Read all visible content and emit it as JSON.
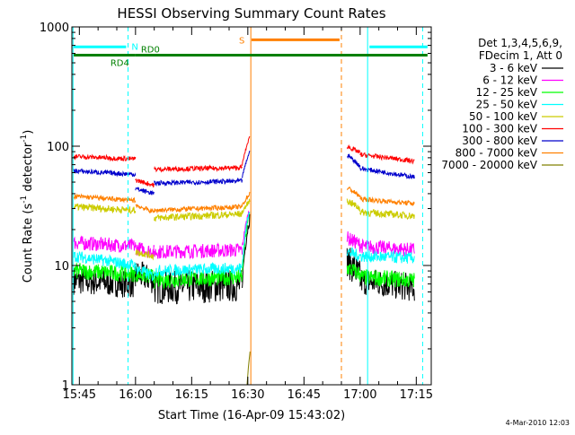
{
  "chart_data": {
    "type": "line",
    "title": "HESSI Observing Summary Count Rates",
    "xlabel": "Start Time (16-Apr-09 15:43:02)",
    "ylabel_main": "Count Rate (s",
    "ylabel_sup1": "-1",
    "ylabel_mid": " detector",
    "ylabel_sup2": "-1",
    "ylabel_end": ")",
    "yscale": "log",
    "ylim": [
      1,
      1000
    ],
    "xlim_minutes_after_1543": [
      0,
      96
    ],
    "x_ticks": [
      {
        "label": "15:45",
        "minute": 2
      },
      {
        "label": "16:00",
        "minute": 17
      },
      {
        "label": "16:15",
        "minute": 32
      },
      {
        "label": "16:30",
        "minute": 47
      },
      {
        "label": "16:45",
        "minute": 62
      },
      {
        "label": "17:00",
        "minute": 77
      },
      {
        "label": "17:15",
        "minute": 92
      }
    ],
    "y_ticks": [
      {
        "label": "1",
        "value": 1
      },
      {
        "label": "10",
        "value": 10
      },
      {
        "label": "100",
        "value": 100
      },
      {
        "label": "1000",
        "value": 1000
      }
    ],
    "legend": {
      "position": "right",
      "header": [
        "Det 1,3,4,5,6,9,",
        "FDecim 1, Att 0"
      ]
    },
    "series": [
      {
        "name": "3 - 6 keV",
        "color": "#000000",
        "segments": [
          {
            "t0": 0.5,
            "t1": 17,
            "v0": 7.5,
            "v1": 7.0,
            "noise": 0.12
          },
          {
            "t0": 17,
            "t1": 22,
            "v0": 8.5,
            "v1": 7.5,
            "noise": 0.12
          },
          {
            "t0": 22,
            "t1": 45.5,
            "v0": 6.5,
            "v1": 6.8,
            "noise": 0.14
          },
          {
            "t0": 45.5,
            "t1": 47.5,
            "v0": 7,
            "v1": 25,
            "noise": 0.05
          },
          {
            "t0": 73.5,
            "t1": 77,
            "v0": 11,
            "v1": 8,
            "noise": 0.14
          },
          {
            "t0": 77,
            "t1": 91.5,
            "v0": 7.5,
            "v1": 6.5,
            "noise": 0.12
          }
        ]
      },
      {
        "name": "6 - 12 keV",
        "color": "#ff00ff",
        "segments": [
          {
            "t0": 0.5,
            "t1": 17,
            "v0": 15.5,
            "v1": 14.5,
            "noise": 0.06
          },
          {
            "t0": 17,
            "t1": 22,
            "v0": 14,
            "v1": 13,
            "noise": 0.06
          },
          {
            "t0": 22,
            "t1": 45.5,
            "v0": 13,
            "v1": 13.5,
            "noise": 0.06
          },
          {
            "t0": 45.5,
            "t1": 47.5,
            "v0": 14,
            "v1": 30,
            "noise": 0.03
          },
          {
            "t0": 73.5,
            "t1": 77,
            "v0": 17,
            "v1": 15,
            "noise": 0.06
          },
          {
            "t0": 77,
            "t1": 91.5,
            "v0": 14.5,
            "v1": 13.5,
            "noise": 0.06
          }
        ]
      },
      {
        "name": "12 - 25 keV",
        "color": "#00ff00",
        "segments": [
          {
            "t0": 0.5,
            "t1": 17,
            "v0": 9.0,
            "v1": 8.5,
            "noise": 0.07
          },
          {
            "t0": 17,
            "t1": 22,
            "v0": 8.5,
            "v1": 8.0,
            "noise": 0.07
          },
          {
            "t0": 22,
            "t1": 45.5,
            "v0": 7.5,
            "v1": 8.0,
            "noise": 0.07
          },
          {
            "t0": 45.5,
            "t1": 47.5,
            "v0": 8.5,
            "v1": 28,
            "noise": 0.03
          },
          {
            "t0": 73.5,
            "t1": 77,
            "v0": 9.5,
            "v1": 8.5,
            "noise": 0.07
          },
          {
            "t0": 77,
            "t1": 91.5,
            "v0": 8.0,
            "v1": 7.5,
            "noise": 0.07
          }
        ]
      },
      {
        "name": "25 - 50 keV",
        "color": "#00ffff",
        "segments": [
          {
            "t0": 0.5,
            "t1": 17,
            "v0": 12,
            "v1": 10,
            "noise": 0.05
          },
          {
            "t0": 17,
            "t1": 22,
            "v0": 9.5,
            "v1": 8.0,
            "noise": 0.05
          },
          {
            "t0": 22,
            "t1": 45.5,
            "v0": 9.0,
            "v1": 9.5,
            "noise": 0.05
          },
          {
            "t0": 45.5,
            "t1": 47.5,
            "v0": 10,
            "v1": 30,
            "noise": 0.03
          },
          {
            "t0": 73.5,
            "t1": 77,
            "v0": 13,
            "v1": 12,
            "noise": 0.05
          },
          {
            "t0": 77,
            "t1": 91.5,
            "v0": 12,
            "v1": 11.5,
            "noise": 0.05
          }
        ]
      },
      {
        "name": "50 - 100 keV",
        "color": "#cccc00",
        "segments": [
          {
            "t0": 0.5,
            "t1": 17,
            "v0": 31,
            "v1": 29,
            "noise": 0.03
          },
          {
            "t0": 17,
            "t1": 22,
            "v0": 13,
            "v1": 12,
            "noise": 0.03
          },
          {
            "t0": 22,
            "t1": 45.5,
            "v0": 25,
            "v1": 27,
            "noise": 0.03
          },
          {
            "t0": 45.5,
            "t1": 47.5,
            "v0": 28,
            "v1": 35,
            "noise": 0.02
          },
          {
            "t0": 73.5,
            "t1": 77,
            "v0": 35,
            "v1": 30,
            "noise": 0.03
          },
          {
            "t0": 77,
            "t1": 91.5,
            "v0": 28,
            "v1": 26,
            "noise": 0.03
          }
        ]
      },
      {
        "name": "100 - 300 keV",
        "color": "#ff0000",
        "segments": [
          {
            "t0": 0.5,
            "t1": 17,
            "v0": 82,
            "v1": 78,
            "noise": 0.02
          },
          {
            "t0": 17,
            "t1": 22,
            "v0": 52,
            "v1": 47,
            "noise": 0.02
          },
          {
            "t0": 22,
            "t1": 45.5,
            "v0": 64,
            "v1": 66,
            "noise": 0.02
          },
          {
            "t0": 45.5,
            "t1": 47.5,
            "v0": 70,
            "v1": 120,
            "noise": 0.01
          },
          {
            "t0": 73.5,
            "t1": 77,
            "v0": 100,
            "v1": 88,
            "noise": 0.02
          },
          {
            "t0": 77,
            "t1": 91.5,
            "v0": 85,
            "v1": 75,
            "noise": 0.02
          }
        ]
      },
      {
        "name": "300 - 800 keV",
        "color": "#0000cc",
        "segments": [
          {
            "t0": 0.5,
            "t1": 17,
            "v0": 62,
            "v1": 58,
            "noise": 0.02
          },
          {
            "t0": 17,
            "t1": 22,
            "v0": 44,
            "v1": 40,
            "noise": 0.02
          },
          {
            "t0": 22,
            "t1": 45.5,
            "v0": 49,
            "v1": 51,
            "noise": 0.02
          },
          {
            "t0": 45.5,
            "t1": 47.5,
            "v0": 55,
            "v1": 90,
            "noise": 0.01
          },
          {
            "t0": 73.5,
            "t1": 77,
            "v0": 85,
            "v1": 68,
            "noise": 0.02
          },
          {
            "t0": 77,
            "t1": 91.5,
            "v0": 65,
            "v1": 55,
            "noise": 0.02
          }
        ]
      },
      {
        "name": "800 - 7000 keV",
        "color": "#ff8000",
        "segments": [
          {
            "t0": 0.5,
            "t1": 17,
            "v0": 38,
            "v1": 35,
            "noise": 0.02
          },
          {
            "t0": 17,
            "t1": 22,
            "v0": 32,
            "v1": 28,
            "noise": 0.02
          },
          {
            "t0": 22,
            "t1": 45.5,
            "v0": 29,
            "v1": 31,
            "noise": 0.02
          },
          {
            "t0": 45.5,
            "t1": 47.5,
            "v0": 32,
            "v1": 40,
            "noise": 0.02
          },
          {
            "t0": 73.5,
            "t1": 77,
            "v0": 45,
            "v1": 38,
            "noise": 0.02
          },
          {
            "t0": 77,
            "t1": 91.5,
            "v0": 36,
            "v1": 33,
            "noise": 0.02
          }
        ]
      },
      {
        "name": "7000 - 20000 keV",
        "color": "#808000",
        "segments": [
          {
            "t0": 46.8,
            "t1": 47.6,
            "v0": 1,
            "v1": 1.9,
            "noise": 0.0
          }
        ]
      }
    ],
    "mode_bars": [
      {
        "label": "N",
        "color": "#00ffff",
        "t0": 0.5,
        "t1": 14.5,
        "v": 680
      },
      {
        "label": "N",
        "color": "#00ffff",
        "t0": 79.5,
        "t1": 95,
        "v": 680
      },
      {
        "label": "S",
        "color": "#ff8000",
        "t0": 48.0,
        "t1": 71.5,
        "v": 780
      },
      {
        "label": "RD4",
        "color": "#008000",
        "t0": 0.5,
        "t1": 17.0,
        "v": 580
      },
      {
        "label": "RD0",
        "color": "#008000",
        "t0": 17.0,
        "t1": 95,
        "v": 580
      }
    ],
    "vlines": [
      {
        "t": 0.3,
        "color": "#00ffff",
        "dash": false
      },
      {
        "t": 15.0,
        "color": "#00ffff",
        "dash": true
      },
      {
        "t": 47.8,
        "color": "#ff8000",
        "dash": false
      },
      {
        "t": 72.0,
        "color": "#ff8000",
        "dash": true
      },
      {
        "t": 79.0,
        "color": "#00ffff",
        "dash": false
      },
      {
        "t": 93.7,
        "color": "#00ffff",
        "dash": true
      }
    ],
    "footer_stamp": "4-Mar-2010 12:03"
  }
}
